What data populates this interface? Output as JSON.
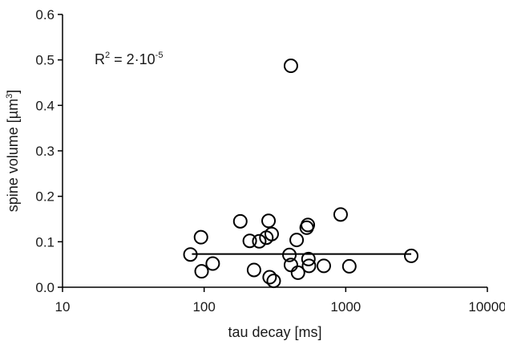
{
  "chart_data": {
    "type": "scatter",
    "xlabel": "tau decay [ms]",
    "ylabel_prefix": "spine volume [",
    "ylabel_unit": "µm",
    "ylabel_exp": "3",
    "ylabel_suffix": "]",
    "xscale": "log",
    "xlim": [
      10,
      10000
    ],
    "ylim": [
      0,
      0.6
    ],
    "x_tick_labels": [
      "10",
      "100",
      "1000",
      "10000"
    ],
    "x_ticks": [
      10,
      100,
      1000,
      10000
    ],
    "y_tick_labels": [
      "0.0",
      "0.1",
      "0.2",
      "0.3",
      "0.4",
      "0.5",
      "0.6"
    ],
    "y_ticks": [
      0,
      0.1,
      0.2,
      0.3,
      0.4,
      0.5,
      0.6
    ],
    "grid": false,
    "annotation": {
      "r": "R",
      "r_exp": "2",
      "eq": " = 2·10",
      "exp": "-5"
    },
    "fit_line": {
      "x": [
        82,
        2900
      ],
      "y": [
        0.073,
        0.073
      ]
    },
    "points": [
      {
        "x": 410,
        "y": 0.487
      },
      {
        "x": 80,
        "y": 0.072
      },
      {
        "x": 95,
        "y": 0.11
      },
      {
        "x": 96,
        "y": 0.035
      },
      {
        "x": 115,
        "y": 0.052
      },
      {
        "x": 180,
        "y": 0.145
      },
      {
        "x": 210,
        "y": 0.102
      },
      {
        "x": 225,
        "y": 0.038
      },
      {
        "x": 245,
        "y": 0.101
      },
      {
        "x": 275,
        "y": 0.109
      },
      {
        "x": 285,
        "y": 0.146
      },
      {
        "x": 300,
        "y": 0.117
      },
      {
        "x": 290,
        "y": 0.022
      },
      {
        "x": 310,
        "y": 0.014
      },
      {
        "x": 400,
        "y": 0.071
      },
      {
        "x": 410,
        "y": 0.049
      },
      {
        "x": 450,
        "y": 0.104
      },
      {
        "x": 460,
        "y": 0.032
      },
      {
        "x": 530,
        "y": 0.131
      },
      {
        "x": 540,
        "y": 0.137
      },
      {
        "x": 545,
        "y": 0.062
      },
      {
        "x": 550,
        "y": 0.047
      },
      {
        "x": 700,
        "y": 0.047
      },
      {
        "x": 920,
        "y": 0.16
      },
      {
        "x": 1060,
        "y": 0.046
      },
      {
        "x": 2900,
        "y": 0.069
      }
    ]
  }
}
